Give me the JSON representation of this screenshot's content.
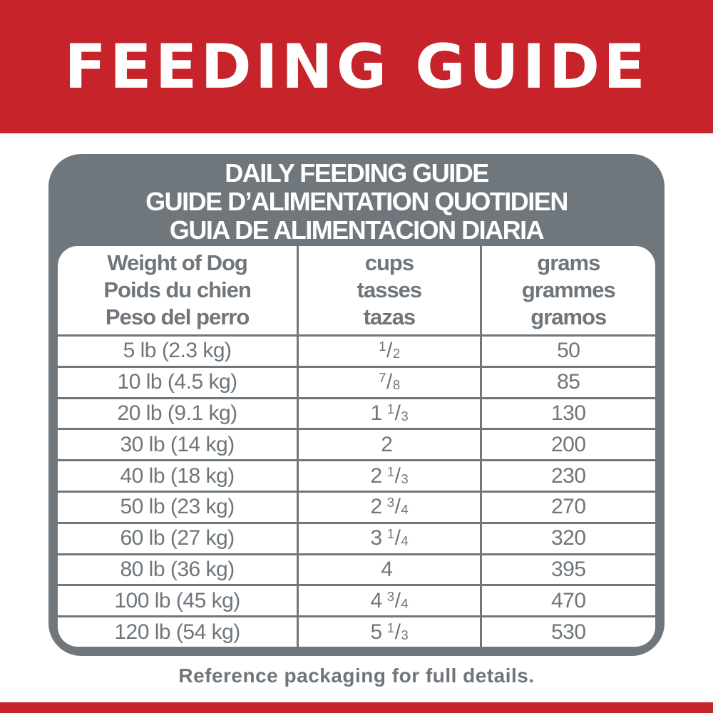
{
  "banner": {
    "title": "FEEDING GUIDE"
  },
  "panel": {
    "heading_lines": [
      "DAILY FEEDING GUIDE",
      "GUIDE D’ALIMENTATION QUOTIDIEN",
      "GUIA DE ALIMENTACION DIARIA"
    ]
  },
  "table": {
    "columns": [
      {
        "lines": [
          "Weight of Dog",
          "Poids du chien",
          "Peso del perro"
        ]
      },
      {
        "lines": [
          "cups",
          "tasses",
          "tazas"
        ]
      },
      {
        "lines": [
          "grams",
          "grammes",
          "gramos"
        ]
      }
    ],
    "rows": [
      {
        "weight": "5 lb (2.3 kg)",
        "cups_whole": "",
        "cups_num": "1",
        "cups_den": "2",
        "grams": "50"
      },
      {
        "weight": "10 lb (4.5 kg)",
        "cups_whole": "",
        "cups_num": "7",
        "cups_den": "8",
        "grams": "85"
      },
      {
        "weight": "20 lb (9.1 kg)",
        "cups_whole": "1",
        "cups_num": "1",
        "cups_den": "3",
        "grams": "130"
      },
      {
        "weight": "30 lb (14 kg)",
        "cups_whole": "2",
        "cups_num": "",
        "cups_den": "",
        "grams": "200"
      },
      {
        "weight": "40 lb (18 kg)",
        "cups_whole": "2",
        "cups_num": "1",
        "cups_den": "3",
        "grams": "230"
      },
      {
        "weight": "50 lb (23 kg)",
        "cups_whole": "2",
        "cups_num": "3",
        "cups_den": "4",
        "grams": "270"
      },
      {
        "weight": "60 lb (27 kg)",
        "cups_whole": "3",
        "cups_num": "1",
        "cups_den": "4",
        "grams": "320"
      },
      {
        "weight": "80 lb (36 kg)",
        "cups_whole": "4",
        "cups_num": "",
        "cups_den": "",
        "grams": "395"
      },
      {
        "weight": "100 lb (45 kg)",
        "cups_whole": "4",
        "cups_num": "3",
        "cups_den": "4",
        "grams": "470"
      },
      {
        "weight": "120 lb (54 kg)",
        "cups_whole": "5",
        "cups_num": "1",
        "cups_den": "3",
        "grams": "530"
      }
    ]
  },
  "footer": {
    "note": "Reference packaging for full details."
  },
  "colors": {
    "red": "#C6232B",
    "panel_gray": "#70777C",
    "text_gray": "#6F767B",
    "white": "#FFFFFF"
  }
}
